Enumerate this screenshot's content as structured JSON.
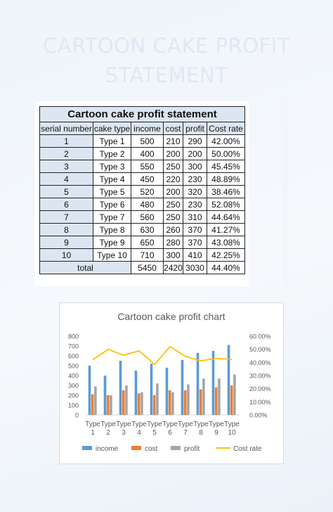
{
  "page": {
    "title": "CARTOON CAKE PROFIT STATEMENT"
  },
  "table": {
    "title": "Cartoon cake profit statement",
    "headers": [
      "serial number",
      "cake type",
      "income",
      "cost",
      "profit",
      "Cost rate"
    ],
    "rows": [
      [
        "1",
        "Type 1",
        "500",
        "210",
        "290",
        "42.00%"
      ],
      [
        "2",
        "Type 2",
        "400",
        "200",
        "200",
        "50.00%"
      ],
      [
        "3",
        "Type 3",
        "550",
        "250",
        "300",
        "45.45%"
      ],
      [
        "4",
        "Type 4",
        "450",
        "220",
        "230",
        "48.89%"
      ],
      [
        "5",
        "Type 5",
        "520",
        "200",
        "320",
        "38.46%"
      ],
      [
        "6",
        "Type 6",
        "480",
        "250",
        "230",
        "52.08%"
      ],
      [
        "7",
        "Type 7",
        "560",
        "250",
        "310",
        "44.64%"
      ],
      [
        "8",
        "Type 8",
        "630",
        "260",
        "370",
        "41.27%"
      ],
      [
        "9",
        "Type 9",
        "650",
        "280",
        "370",
        "43.08%"
      ],
      [
        "10",
        "Type 10",
        "710",
        "300",
        "410",
        "42.25%"
      ]
    ],
    "total": {
      "label": "total",
      "income": "5450",
      "cost": "2420",
      "profit": "3030",
      "rate": "44.40%"
    }
  },
  "chart_data": {
    "type": "bar",
    "title": "Cartoon cake profit chart",
    "categories": [
      "Type 1",
      "Type 2",
      "Type 3",
      "Type 4",
      "Type 5",
      "Type 6",
      "Type 7",
      "Type 8",
      "Type 9",
      "Type 10"
    ],
    "category_lines": [
      [
        "Type",
        "1"
      ],
      [
        "Type",
        "2"
      ],
      [
        "Type",
        "3"
      ],
      [
        "Type",
        "4"
      ],
      [
        "Type",
        "5"
      ],
      [
        "Type",
        "6"
      ],
      [
        "Type",
        "7"
      ],
      [
        "Type",
        "8"
      ],
      [
        "Type",
        "9"
      ],
      [
        "Type",
        "10"
      ]
    ],
    "series": [
      {
        "name": "income",
        "kind": "bar",
        "axis": "left",
        "color": "#5b9bd5",
        "values": [
          500,
          400,
          550,
          450,
          520,
          480,
          560,
          630,
          650,
          710
        ]
      },
      {
        "name": "cost",
        "kind": "bar",
        "axis": "left",
        "color": "#ed7d31",
        "values": [
          210,
          200,
          250,
          220,
          200,
          250,
          250,
          260,
          280,
          300
        ]
      },
      {
        "name": "profit",
        "kind": "bar",
        "axis": "left",
        "color": "#a5a5a5",
        "values": [
          290,
          200,
          300,
          230,
          320,
          230,
          310,
          370,
          370,
          410
        ]
      },
      {
        "name": "Cost rate",
        "kind": "line",
        "axis": "right",
        "color": "#ffc000",
        "values": [
          0.42,
          0.5,
          0.4545,
          0.4889,
          0.3846,
          0.5208,
          0.4464,
          0.4127,
          0.4308,
          0.4225
        ]
      }
    ],
    "y_left": {
      "min": 0,
      "max": 800,
      "ticks": [
        "0",
        "100",
        "200",
        "300",
        "400",
        "500",
        "600",
        "700",
        "800"
      ]
    },
    "y_right": {
      "min": 0,
      "max": 0.6,
      "ticks": [
        "0.00%",
        "10.00%",
        "20.00%",
        "30.00%",
        "40.00%",
        "50.00%",
        "60.00%"
      ]
    },
    "legend_position": "bottom",
    "grid": false
  }
}
